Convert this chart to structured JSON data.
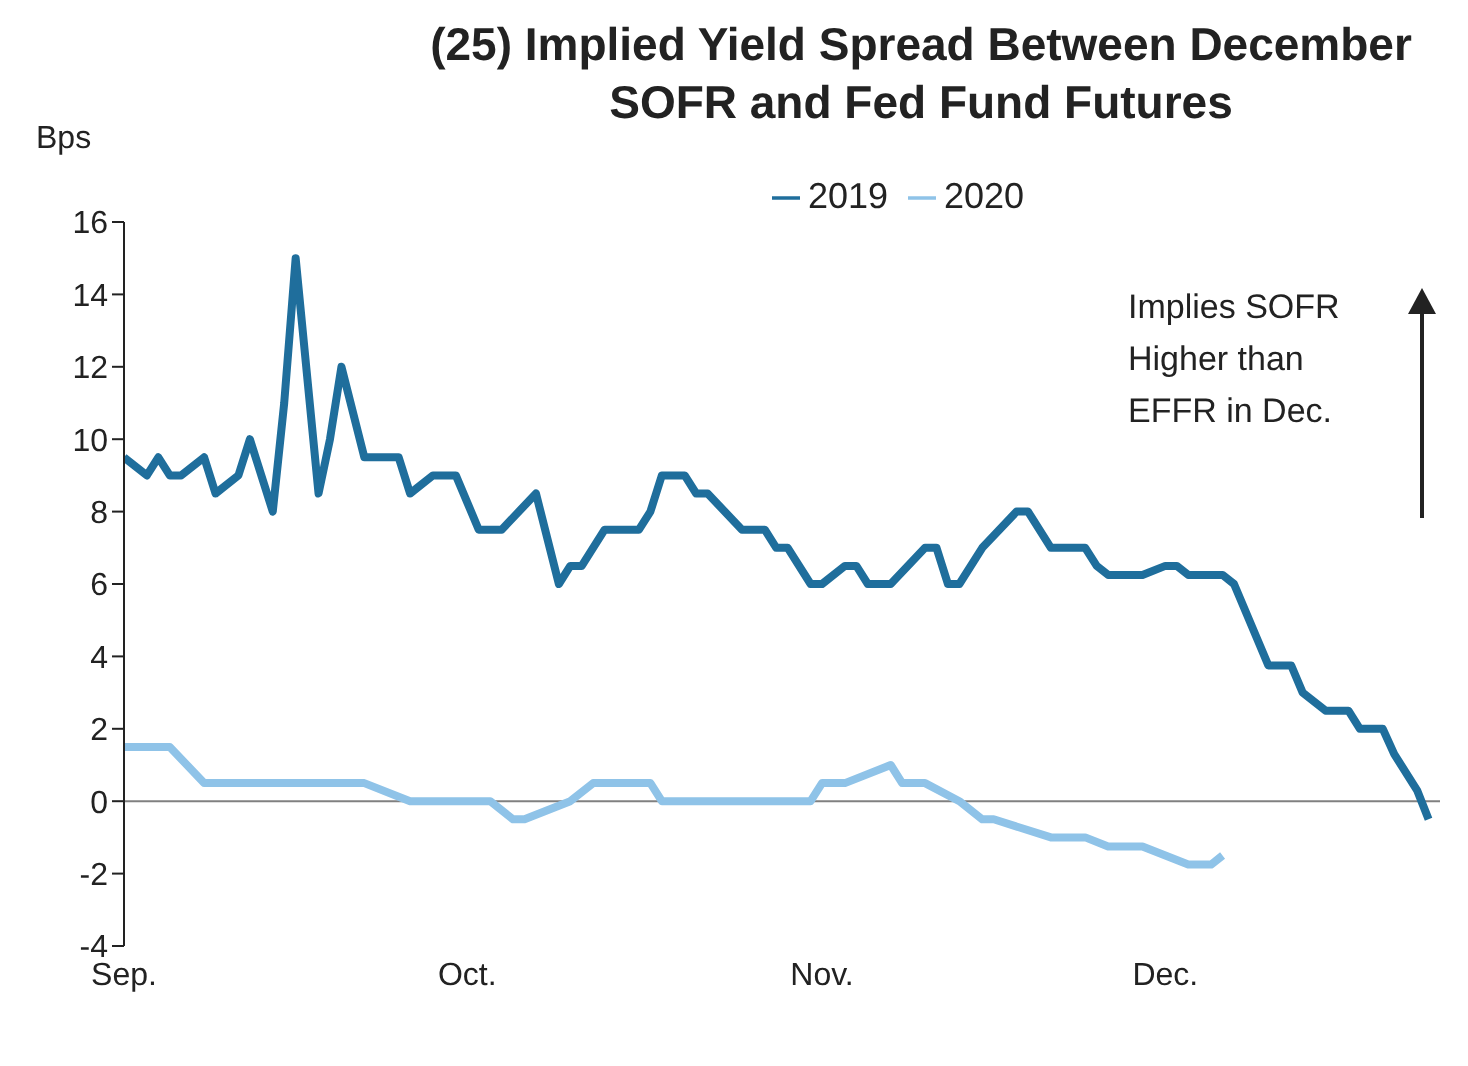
{
  "chart_data": {
    "type": "line",
    "title": "(25) Implied Yield Spread Between December SOFR and Fed Fund Futures",
    "ylabel": "Bps",
    "annotations": [
      "Implies SOFR Higher than EFFR in Dec."
    ],
    "xlim": [
      "--09-01",
      "--12-25"
    ],
    "xticks": [
      {
        "value": "--09-01",
        "label": "Sep."
      },
      {
        "value": "--10-01",
        "label": "Oct."
      },
      {
        "value": "--11-01",
        "label": "Nov."
      },
      {
        "value": "--12-01",
        "label": "Dec."
      }
    ],
    "ylim": [
      -4,
      16
    ],
    "yticks": [
      -4,
      -2,
      0,
      2,
      4,
      6,
      8,
      10,
      12,
      14,
      16
    ],
    "grid": false,
    "legend": "top",
    "marker": "none",
    "line_style": "solid",
    "ref_lines": [
      {
        "axis": "y",
        "value": 0,
        "label": null,
        "color": "#808080"
      }
    ],
    "series": [
      {
        "name": "2019",
        "color": "#1f6e9c",
        "x": [
          "--09-01",
          "--09-03",
          "--09-04",
          "--09-05",
          "--09-06",
          "--09-08",
          "--09-09",
          "--09-11",
          "--09-12",
          "--09-14",
          "--09-15",
          "--09-16",
          "--09-18",
          "--09-19",
          "--09-20",
          "--09-22",
          "--09-25",
          "--09-26",
          "--09-28",
          "--09-30",
          "--10-02",
          "--10-04",
          "--10-07",
          "--10-09",
          "--10-10",
          "--10-11",
          "--10-13",
          "--10-16",
          "--10-17",
          "--10-18",
          "--10-20",
          "--10-21",
          "--10-22",
          "--10-25",
          "--10-27",
          "--10-28",
          "--10-29",
          "--10-31",
          "--11-01",
          "--11-03",
          "--11-04",
          "--11-05",
          "--11-07",
          "--11-10",
          "--11-11",
          "--11-12",
          "--11-13",
          "--11-15",
          "--11-18",
          "--11-19",
          "--11-21",
          "--11-24",
          "--11-25",
          "--11-26",
          "--11-29",
          "--12-01",
          "--12-02",
          "--12-03",
          "--12-06",
          "--12-07",
          "--12-09",
          "--12-10",
          "--12-12",
          "--12-13",
          "--12-15",
          "--12-17",
          "--12-18",
          "--12-20",
          "--12-21",
          "--12-23",
          "--12-24"
        ],
        "values": [
          9.5,
          9,
          9.5,
          9,
          9,
          9.5,
          8.5,
          9,
          10,
          8,
          11,
          15,
          8.5,
          10,
          12,
          9.5,
          9.5,
          8.5,
          9,
          9,
          7.5,
          7.5,
          8.5,
          6,
          6.5,
          6.5,
          7.5,
          7.5,
          8,
          9,
          9,
          8.5,
          8.5,
          7.5,
          7.5,
          7,
          7,
          6,
          6,
          6.5,
          6.5,
          6,
          6,
          7,
          7,
          6,
          6,
          7,
          8,
          8,
          7,
          7,
          6.5,
          6.25,
          6.25,
          6.5,
          6.5,
          6.25,
          6.25,
          6,
          4.5,
          3.75,
          3.75,
          3,
          2.5,
          2.5,
          2,
          2,
          1.3,
          0.3,
          -0.5
        ]
      },
      {
        "name": "2020",
        "color": "#8fc3e8",
        "x": [
          "--09-01",
          "--09-05",
          "--09-08",
          "--09-22",
          "--09-26",
          "--10-03",
          "--10-05",
          "--10-06",
          "--10-10",
          "--10-12",
          "--10-17",
          "--10-18",
          "--10-31",
          "--11-01",
          "--11-03",
          "--11-07",
          "--11-08",
          "--11-10",
          "--11-13",
          "--11-15",
          "--11-16",
          "--11-21",
          "--11-24",
          "--11-26",
          "--11-29",
          "--12-03",
          "--12-05",
          "--12-06"
        ],
        "values": [
          1.5,
          1.5,
          0.5,
          0.5,
          0,
          0,
          -0.5,
          -0.5,
          0,
          0.5,
          0.5,
          0,
          0,
          0.5,
          0.5,
          1,
          0.5,
          0.5,
          0,
          -0.5,
          -0.5,
          -1,
          -1,
          -1.25,
          -1.25,
          -1.75,
          -1.75,
          -1.5
        ]
      }
    ]
  }
}
